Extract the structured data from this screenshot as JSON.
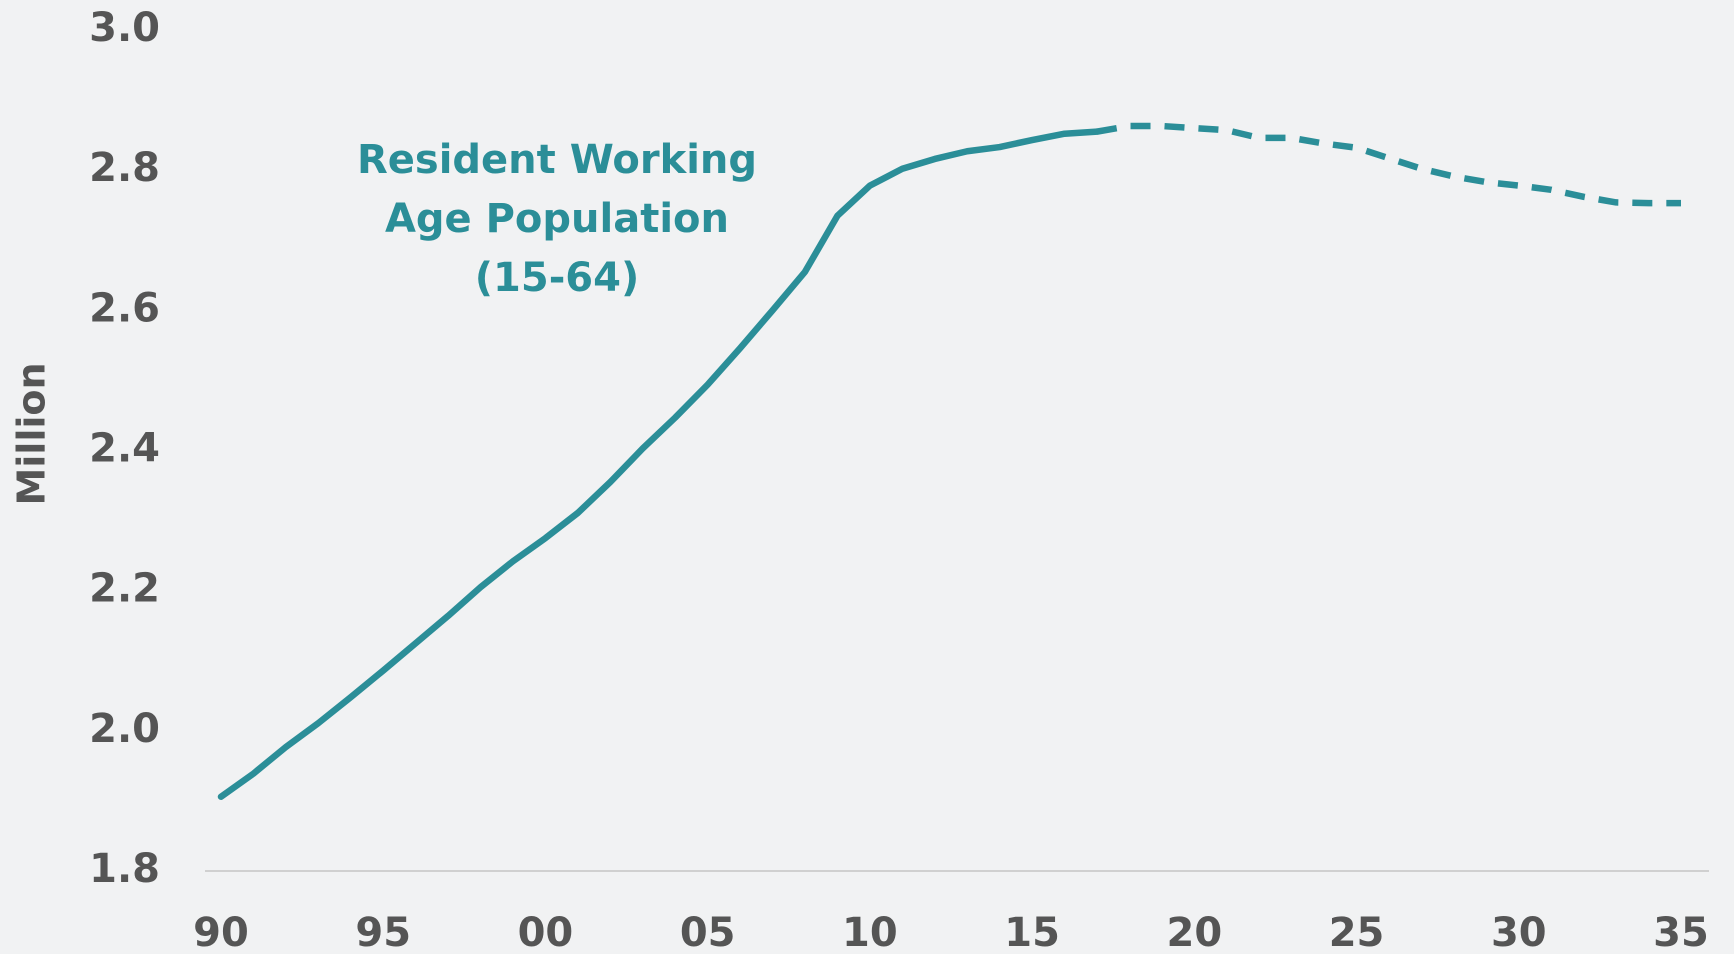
{
  "chart_data": {
    "type": "line",
    "y_label": "Million",
    "annotation": [
      "Resident Working",
      "Age Population",
      "(15-64)"
    ],
    "x": [
      1990,
      1991,
      1992,
      1993,
      1994,
      1995,
      1996,
      1997,
      1998,
      1999,
      2000,
      2001,
      2002,
      2003,
      2004,
      2005,
      2006,
      2007,
      2008,
      2009,
      2010,
      2011,
      2012,
      2013,
      2014,
      2015,
      2016,
      2017,
      2018,
      2019,
      2020,
      2021,
      2022,
      2023,
      2024,
      2025,
      2026,
      2027,
      2028,
      2029,
      2030,
      2031,
      2032,
      2033,
      2034,
      2035
    ],
    "series": [
      {
        "color": "#2b8e98",
        "dashed": false,
        "values": [
          1.906,
          1.939,
          1.977,
          2.011,
          2.048,
          2.086,
          2.125,
          2.164,
          2.205,
          2.242,
          2.275,
          2.311,
          2.355,
          2.403,
          2.447,
          2.494,
          2.546,
          2.6,
          2.655,
          2.735,
          2.778,
          2.802,
          2.816,
          2.827,
          2.833,
          2.843,
          2.852,
          2.855,
          null,
          null,
          null,
          null,
          null,
          null,
          null,
          null,
          null,
          null,
          null,
          null,
          null,
          null,
          null,
          null,
          null,
          null
        ]
      },
      {
        "color": "#2b8e98",
        "dashed": true,
        "values": [
          null,
          null,
          null,
          null,
          null,
          null,
          null,
          null,
          null,
          null,
          null,
          null,
          null,
          null,
          null,
          null,
          null,
          null,
          null,
          null,
          null,
          null,
          null,
          null,
          null,
          null,
          null,
          2.855,
          2.863,
          2.863,
          2.86,
          2.857,
          2.846,
          2.846,
          2.838,
          2.832,
          2.817,
          2.802,
          2.791,
          2.783,
          2.778,
          2.772,
          2.762,
          2.754,
          2.753,
          2.753
        ]
      }
    ],
    "xlim": [
      1990,
      2035
    ],
    "xticks": [
      {
        "value": 1990,
        "label": "90"
      },
      {
        "value": 1995,
        "label": "95"
      },
      {
        "value": 2000,
        "label": "00"
      },
      {
        "value": 2005,
        "label": "05"
      },
      {
        "value": 2010,
        "label": "10"
      },
      {
        "value": 2015,
        "label": "15"
      },
      {
        "value": 2020,
        "label": "20"
      },
      {
        "value": 2025,
        "label": "25"
      },
      {
        "value": 2030,
        "label": "30"
      },
      {
        "value": 2035,
        "label": "35"
      }
    ],
    "ylim": [
      1.8,
      3.0
    ],
    "yticks": [
      {
        "value": 1.8,
        "label": "1.8"
      },
      {
        "value": 2.0,
        "label": "2.0"
      },
      {
        "value": 2.2,
        "label": "2.2"
      },
      {
        "value": 2.4,
        "label": "2.4"
      },
      {
        "value": 2.6,
        "label": "2.6"
      },
      {
        "value": 2.8,
        "label": "2.8"
      },
      {
        "value": 3.0,
        "label": "3.0"
      }
    ]
  }
}
